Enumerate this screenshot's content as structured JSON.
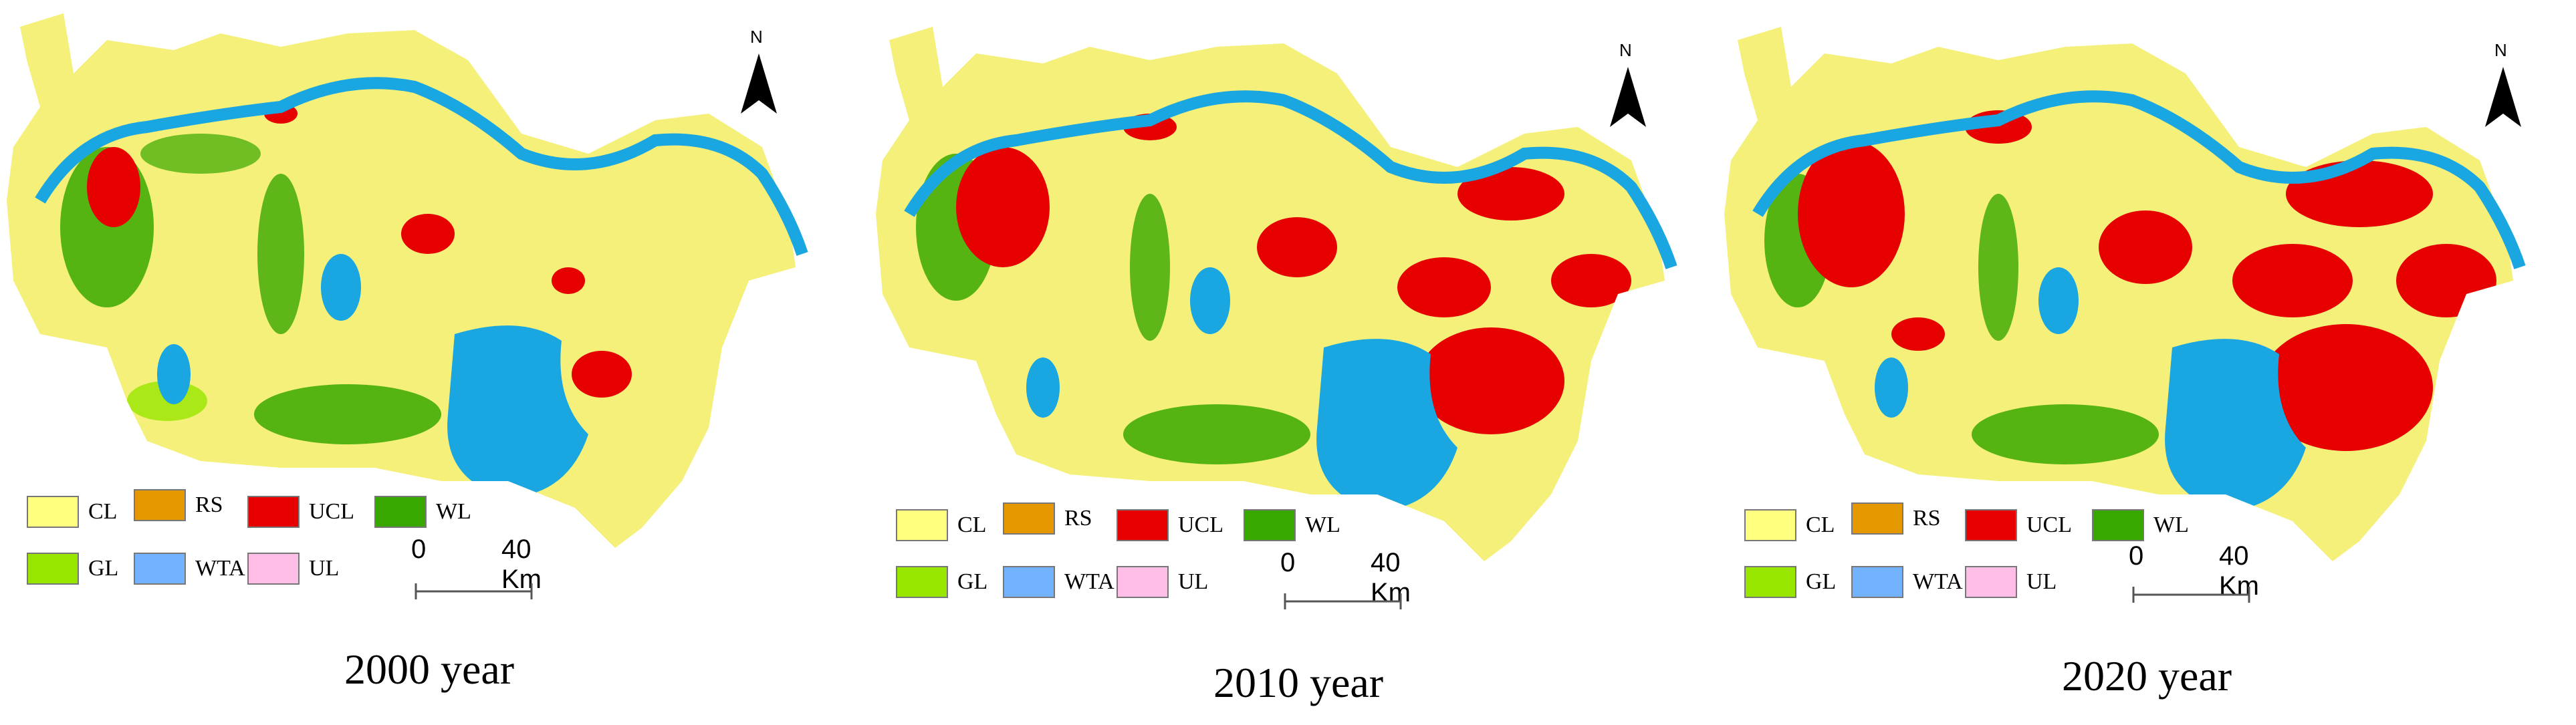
{
  "panels": [
    {
      "caption": "2000 year"
    },
    {
      "caption": "2010 year"
    },
    {
      "caption": "2020 year"
    }
  ],
  "legend": [
    {
      "code": "CL",
      "color": "#ffff80"
    },
    {
      "code": "RS",
      "color": "#e69800"
    },
    {
      "code": "UCL",
      "color": "#e60000"
    },
    {
      "code": "WL",
      "color": "#38a800"
    },
    {
      "code": "GL",
      "color": "#98e600"
    },
    {
      "code": "WTA",
      "color": "#73b2ff"
    },
    {
      "code": "UL",
      "color": "#ffbee8"
    }
  ],
  "scale_bar": {
    "start": "0",
    "end": "40 Km"
  },
  "north_arrow": {
    "label": "N"
  },
  "colors": {
    "water": "#1aa6e0",
    "cropland": "#f5f07a",
    "urban": "#e60000",
    "woodland": "#38a800",
    "grassland": "#98e600"
  }
}
